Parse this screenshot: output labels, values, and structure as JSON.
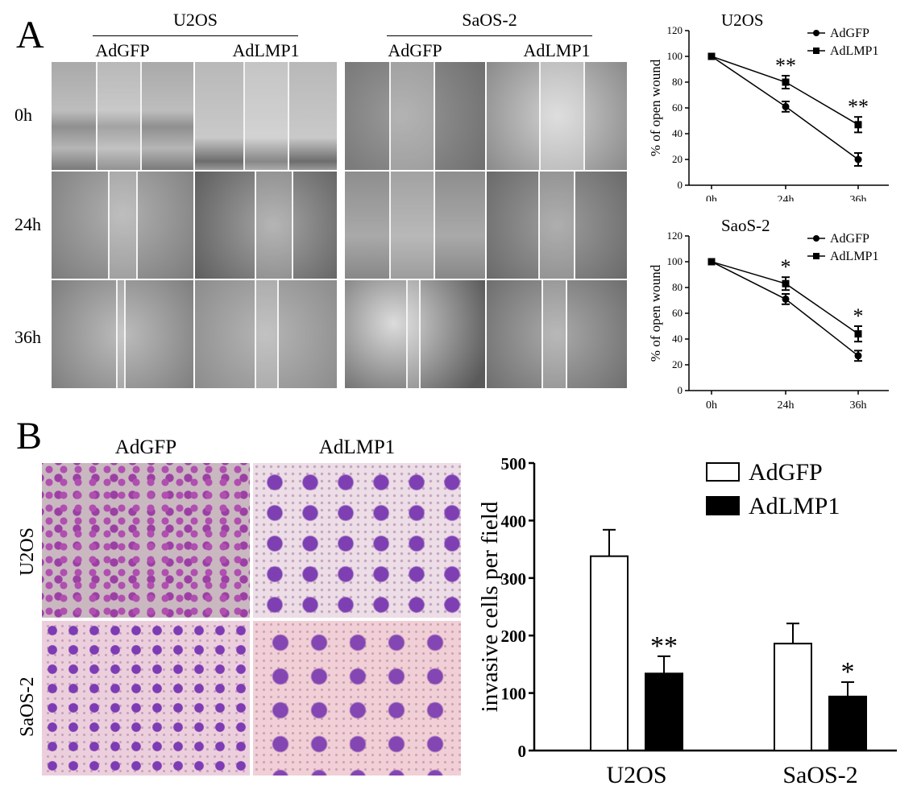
{
  "panel_a": {
    "letter": "A",
    "cell_lines": [
      "U2OS",
      "SaOS-2"
    ],
    "treatments": [
      "AdGFP",
      "AdLMP1",
      "AdGFP",
      "AdLMP1"
    ],
    "time_points": [
      "0h",
      "24h",
      "36h"
    ]
  },
  "panel_b": {
    "letter": "B",
    "column_headers": [
      "AdGFP",
      "AdLMP1"
    ],
    "row_labels": [
      "U2OS",
      "SaOS-2"
    ]
  },
  "chart_data": [
    {
      "type": "line",
      "title": "U2OS",
      "x": [
        "0h",
        "24h",
        "36h"
      ],
      "ylabel": "% of open wound",
      "ylim": [
        0,
        120
      ],
      "yticks": [
        0,
        20,
        40,
        60,
        80,
        100,
        120
      ],
      "legend_position": "top-right",
      "series": [
        {
          "name": "AdGFP",
          "marker": "circle",
          "values": [
            100,
            61,
            20
          ],
          "errors": [
            0,
            4,
            5
          ]
        },
        {
          "name": "AdLMP1",
          "marker": "square",
          "values": [
            100,
            80,
            47
          ],
          "errors": [
            0,
            5,
            6
          ]
        }
      ],
      "annotations": [
        {
          "x": "24h",
          "text": "**"
        },
        {
          "x": "36h",
          "text": "**"
        }
      ]
    },
    {
      "type": "line",
      "title": "SaoS-2",
      "x": [
        "0h",
        "24h",
        "36h"
      ],
      "ylabel": "% of open wound",
      "ylim": [
        0,
        120
      ],
      "yticks": [
        0,
        20,
        40,
        60,
        80,
        100,
        120
      ],
      "legend_position": "top-right",
      "series": [
        {
          "name": "AdGFP",
          "marker": "circle",
          "values": [
            100,
            71,
            27
          ],
          "errors": [
            0,
            4,
            4
          ]
        },
        {
          "name": "AdLMP1",
          "marker": "square",
          "values": [
            100,
            83,
            44
          ],
          "errors": [
            0,
            5,
            6
          ]
        }
      ],
      "annotations": [
        {
          "x": "24h",
          "text": "*"
        },
        {
          "x": "36h",
          "text": "*"
        }
      ]
    },
    {
      "type": "bar",
      "categories": [
        "U2OS",
        "SaOS-2"
      ],
      "ylabel": "invasive cells per field",
      "ylim": [
        0,
        500
      ],
      "yticks": [
        0,
        100,
        200,
        300,
        400,
        500
      ],
      "legend_position": "top-right",
      "series": [
        {
          "name": "AdGFP",
          "color": "#ffffff",
          "values": [
            338,
            186
          ],
          "errors": [
            46,
            35
          ]
        },
        {
          "name": "AdLMP1",
          "color": "#000000",
          "values": [
            134,
            94
          ],
          "errors": [
            30,
            25
          ]
        }
      ],
      "annotations": [
        {
          "category": "U2OS",
          "text": "**"
        },
        {
          "category": "SaOS-2",
          "text": "*"
        }
      ]
    }
  ]
}
